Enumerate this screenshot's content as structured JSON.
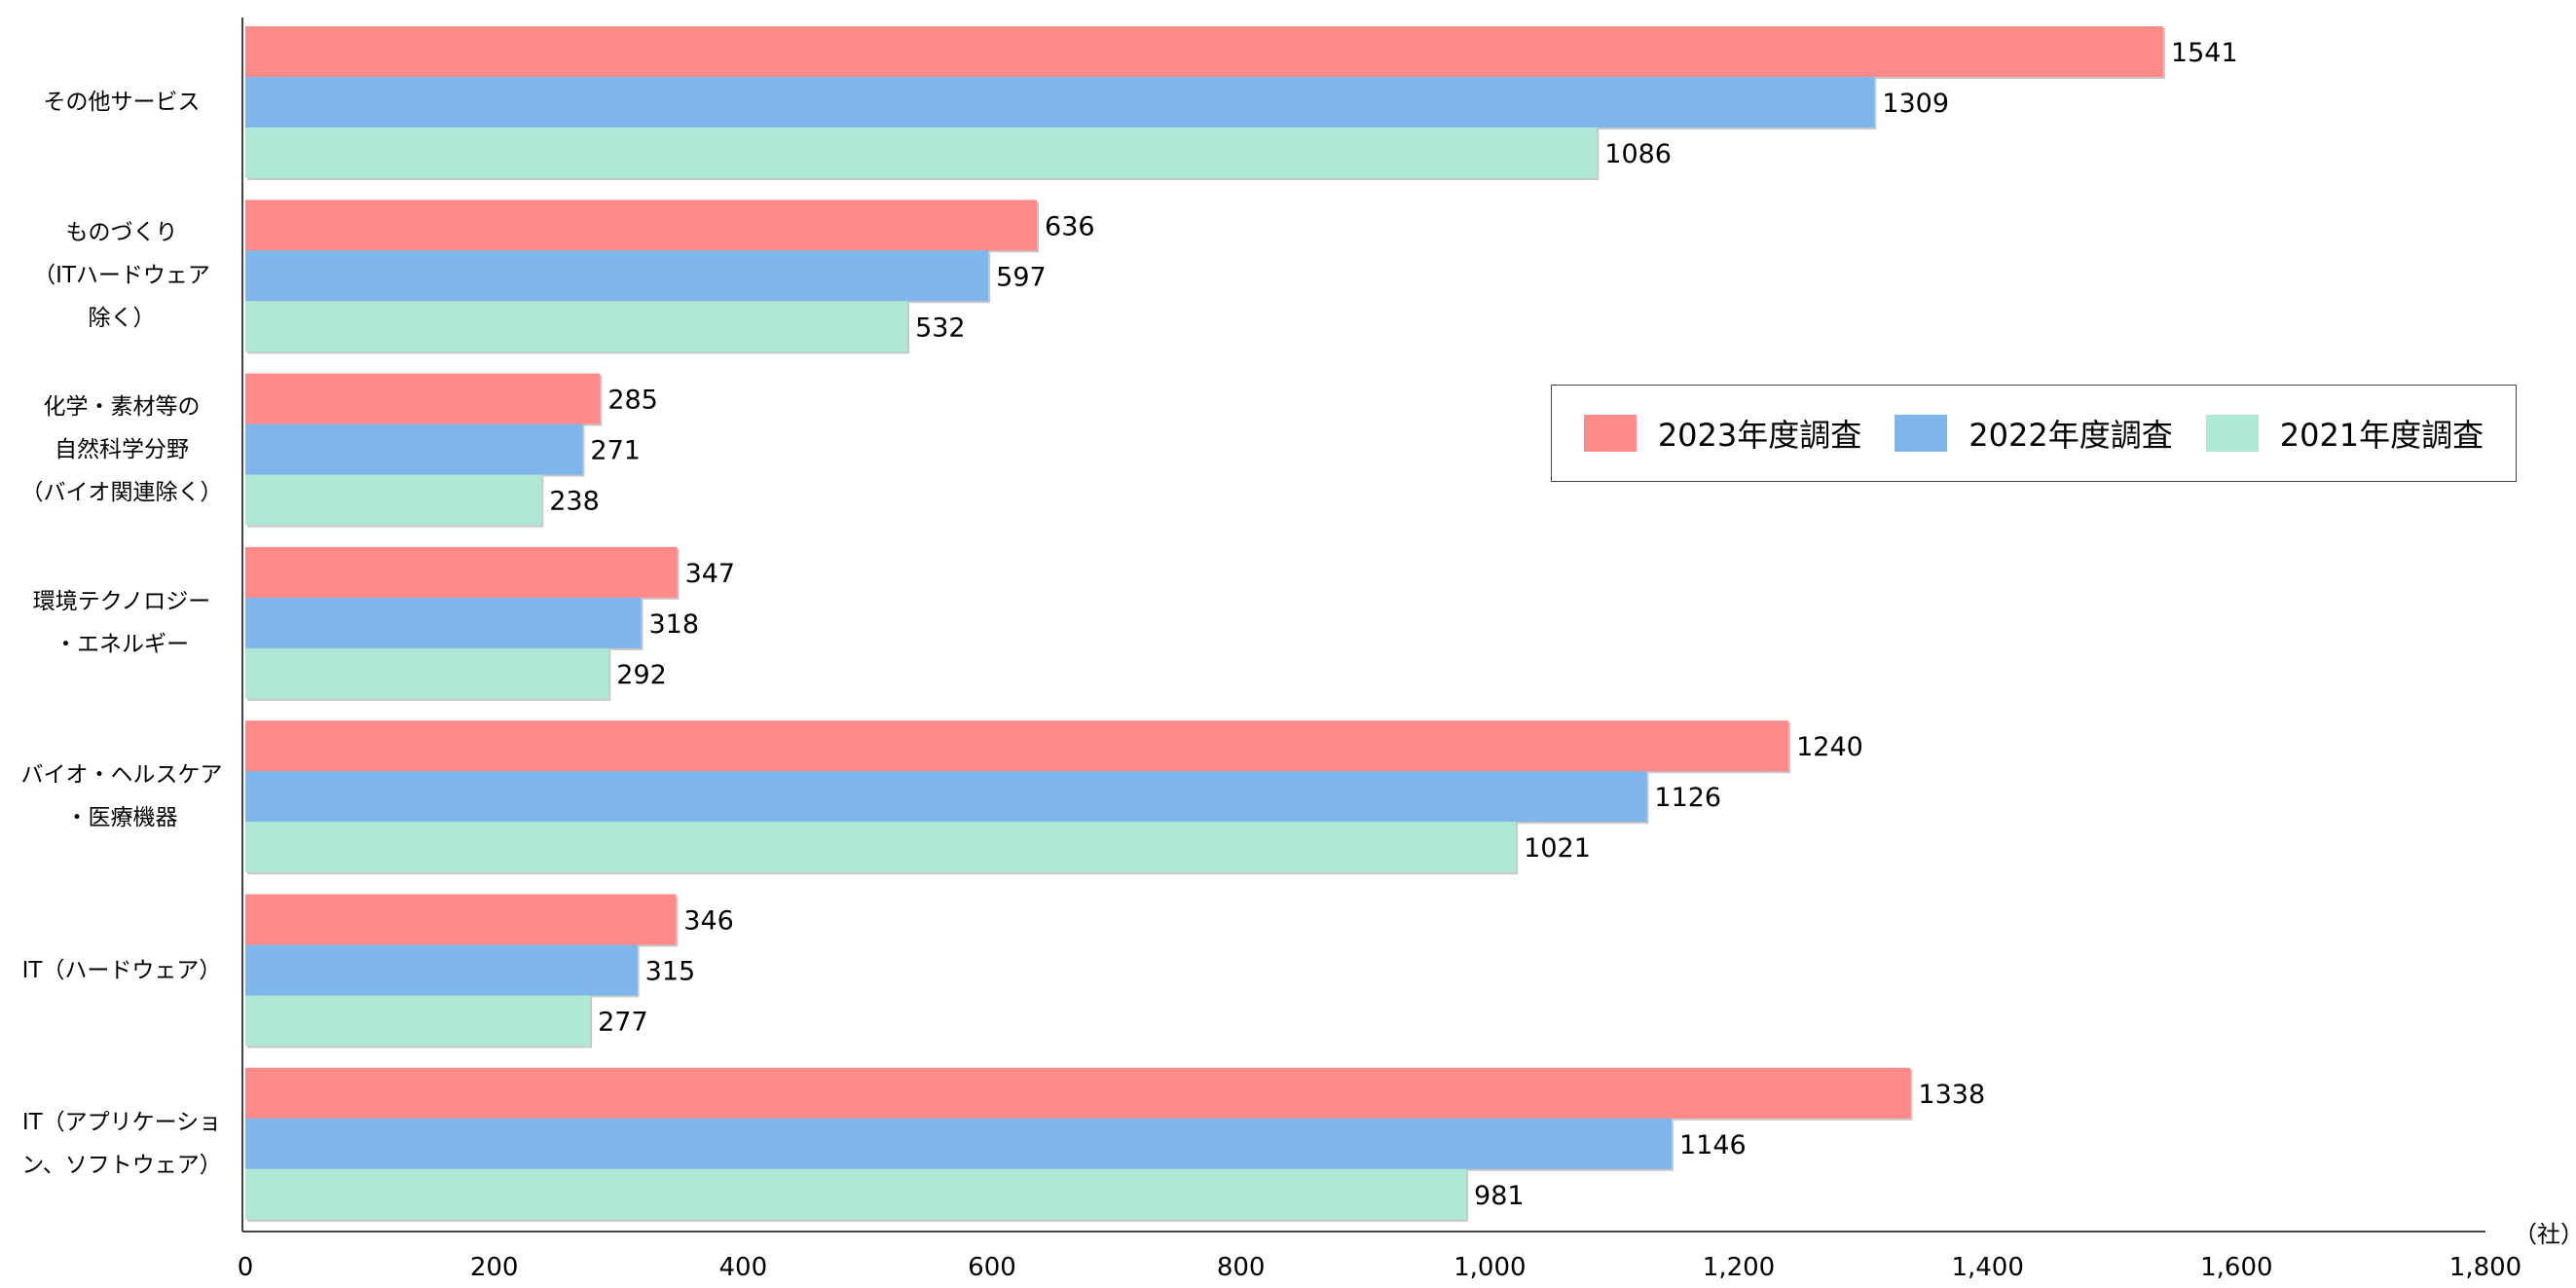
{
  "chart_data": {
    "type": "bar",
    "orientation": "horizontal",
    "categories": [
      "その他サービス",
      "ものづくり\n（ITハードウェア\n除く）",
      "化学・素材等の\n自然科学分野\n（バイオ関連除く）",
      "環境テクノロジー\n・エネルギー",
      "バイオ・ヘルスケア\n・医療機器",
      "IT（ハードウェア）",
      "IT（アプリケーショ\nン、ソフトウェア）"
    ],
    "series": [
      {
        "name": "2023年度調査",
        "color": "#FF8A8A",
        "values": [
          1541,
          636,
          285,
          347,
          1240,
          346,
          1338
        ]
      },
      {
        "name": "2022年度調査",
        "color": "#7EB5EB",
        "values": [
          1309,
          597,
          271,
          318,
          1126,
          315,
          1146
        ]
      },
      {
        "name": "2021年度調査",
        "color": "#B0E8D6",
        "values": [
          1086,
          532,
          238,
          292,
          1021,
          277,
          981
        ]
      }
    ],
    "xlim": [
      0,
      1800
    ],
    "x_ticks": [
      "0",
      "200",
      "400",
      "600",
      "800",
      "1,000",
      "1,200",
      "1,400",
      "1,600",
      "1,800"
    ],
    "unit": "（社）",
    "legend_position": "right-middle",
    "grid": false
  }
}
